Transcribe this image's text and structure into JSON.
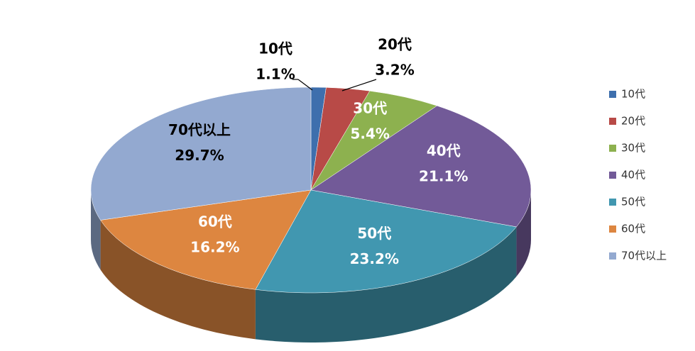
{
  "chart_data": {
    "type": "pie",
    "three_d": true,
    "categories": [
      "10代",
      "20代",
      "30代",
      "40代",
      "50代",
      "60代",
      "70代以上"
    ],
    "values": [
      1.1,
      3.2,
      5.4,
      21.1,
      23.2,
      16.2,
      29.7
    ],
    "value_labels": [
      "1.1%",
      "3.2%",
      "5.4%",
      "21.1%",
      "23.2%",
      "16.2%",
      "29.7%"
    ],
    "colors": [
      "#3e6fad",
      "#b84a47",
      "#8db14f",
      "#725a98",
      "#4197b0",
      "#dd8640",
      "#93a9d0"
    ],
    "label_colors": [
      "#000000",
      "#000000",
      "#ffffff",
      "#ffffff",
      "#ffffff",
      "#ffffff",
      "#000000"
    ],
    "legend": "right"
  }
}
